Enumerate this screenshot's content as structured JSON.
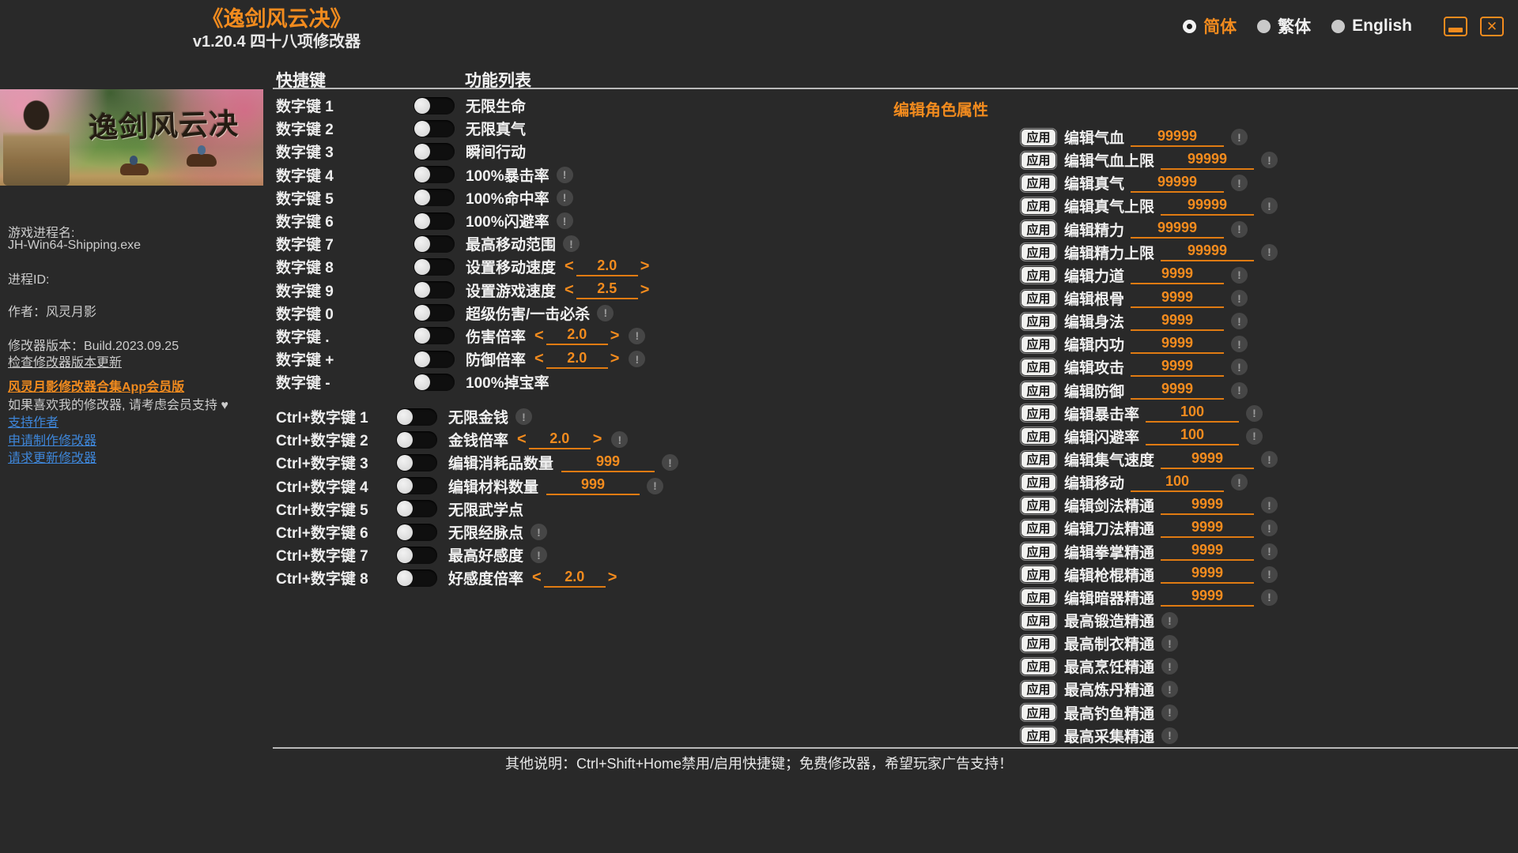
{
  "window": {
    "title": "《逸剑风云决》",
    "subtitle": "v1.20.4 四十八项修改器",
    "language": [
      {
        "label": "简体",
        "selected": true
      },
      {
        "label": "繁体",
        "selected": false
      },
      {
        "label": "English",
        "selected": false
      }
    ]
  },
  "sidebar": {
    "banner_title": "逸剑风云决",
    "process_name_label": "游戏进程名:",
    "process_name": "JH-Win64-Shipping.exe",
    "process_id_label": "进程ID:",
    "author_line": "作者：风灵月影",
    "version_line": "修改器版本：Build.2023.09.25",
    "check_update_link": "检查修改器版本更新",
    "app_member_link": "风灵月影修改器合集App会员版",
    "support_note": "如果喜欢我的修改器, 请考虑会员支持 ♥",
    "links": [
      "支持作者",
      "申请制作修改器",
      "请求更新修改器"
    ]
  },
  "hotkeys": {
    "key_header": "快捷键",
    "fn_header": "功能列表",
    "group1": [
      {
        "key": "数字键 1",
        "label": "无限生命"
      },
      {
        "key": "数字键 2",
        "label": "无限真气"
      },
      {
        "key": "数字键 3",
        "label": "瞬间行动"
      },
      {
        "key": "数字键 4",
        "label": "100%暴击率",
        "warn": true
      },
      {
        "key": "数字键 5",
        "label": "100%命中率",
        "warn": true
      },
      {
        "key": "数字键 6",
        "label": "100%闪避率",
        "warn": true
      },
      {
        "key": "数字键 7",
        "label": "最高移动范围",
        "warn": true
      },
      {
        "key": "数字键 8",
        "label": "设置移动速度",
        "stepper": "2.0"
      },
      {
        "key": "数字键 9",
        "label": "设置游戏速度",
        "stepper": "2.5"
      },
      {
        "key": "数字键 0",
        "label": "超级伤害/一击必杀",
        "warn": true
      },
      {
        "key": "数字键 .",
        "label": "伤害倍率",
        "stepper": "2.0",
        "warn": true
      },
      {
        "key": "数字键 +",
        "label": "防御倍率",
        "stepper": "2.0",
        "warn": true
      },
      {
        "key": "数字键 -",
        "label": "100%掉宝率"
      }
    ],
    "group2": [
      {
        "key": "Ctrl+数字键 1",
        "label": "无限金钱",
        "warn": true
      },
      {
        "key": "Ctrl+数字键 2",
        "label": "金钱倍率",
        "stepper": "2.0",
        "warn": true
      },
      {
        "key": "Ctrl+数字键 3",
        "label": "编辑消耗品数量",
        "field": "999",
        "warn": true
      },
      {
        "key": "Ctrl+数字键 4",
        "label": "编辑材料数量",
        "field": "999",
        "warn": true
      },
      {
        "key": "Ctrl+数字键 5",
        "label": "无限武学点"
      },
      {
        "key": "Ctrl+数字键 6",
        "label": "无限经脉点",
        "warn": true
      },
      {
        "key": "Ctrl+数字键 7",
        "label": "最高好感度",
        "warn": true
      },
      {
        "key": "Ctrl+数字键 8",
        "label": "好感度倍率",
        "stepper": "2.0"
      }
    ]
  },
  "editor": {
    "header": "编辑角色属性",
    "apply_label": "应用",
    "rows": [
      {
        "label": "编辑气血",
        "value": "99999"
      },
      {
        "label": "编辑气血上限",
        "value": "99999"
      },
      {
        "label": "编辑真气",
        "value": "99999"
      },
      {
        "label": "编辑真气上限",
        "value": "99999"
      },
      {
        "label": "编辑精力",
        "value": "99999"
      },
      {
        "label": "编辑精力上限",
        "value": "99999"
      },
      {
        "label": "编辑力道",
        "value": "9999"
      },
      {
        "label": "编辑根骨",
        "value": "9999"
      },
      {
        "label": "编辑身法",
        "value": "9999"
      },
      {
        "label": "编辑内功",
        "value": "9999"
      },
      {
        "label": "编辑攻击",
        "value": "9999"
      },
      {
        "label": "编辑防御",
        "value": "9999"
      },
      {
        "label": "编辑暴击率",
        "value": "100"
      },
      {
        "label": "编辑闪避率",
        "value": "100"
      },
      {
        "label": "编辑集气速度",
        "value": "9999"
      },
      {
        "label": "编辑移动",
        "value": "100"
      },
      {
        "label": "编辑剑法精通",
        "value": "9999"
      },
      {
        "label": "编辑刀法精通",
        "value": "9999"
      },
      {
        "label": "编辑拳掌精通",
        "value": "9999"
      },
      {
        "label": "编辑枪棍精通",
        "value": "9999"
      },
      {
        "label": "编辑暗器精通",
        "value": "9999"
      },
      {
        "label": "最高锻造精通"
      },
      {
        "label": "最高制衣精通"
      },
      {
        "label": "最高烹饪精通"
      },
      {
        "label": "最高炼丹精通"
      },
      {
        "label": "最高钓鱼精通"
      },
      {
        "label": "最高采集精通"
      }
    ]
  },
  "status_bar": {
    "text": "其他说明：Ctrl+Shift+Home禁用/启用快捷键；免费修改器，希望玩家广告支持！"
  },
  "colors": {
    "accent_orange": "#F28B1E",
    "link_blue": "#3E86D9",
    "background": "#292929"
  }
}
